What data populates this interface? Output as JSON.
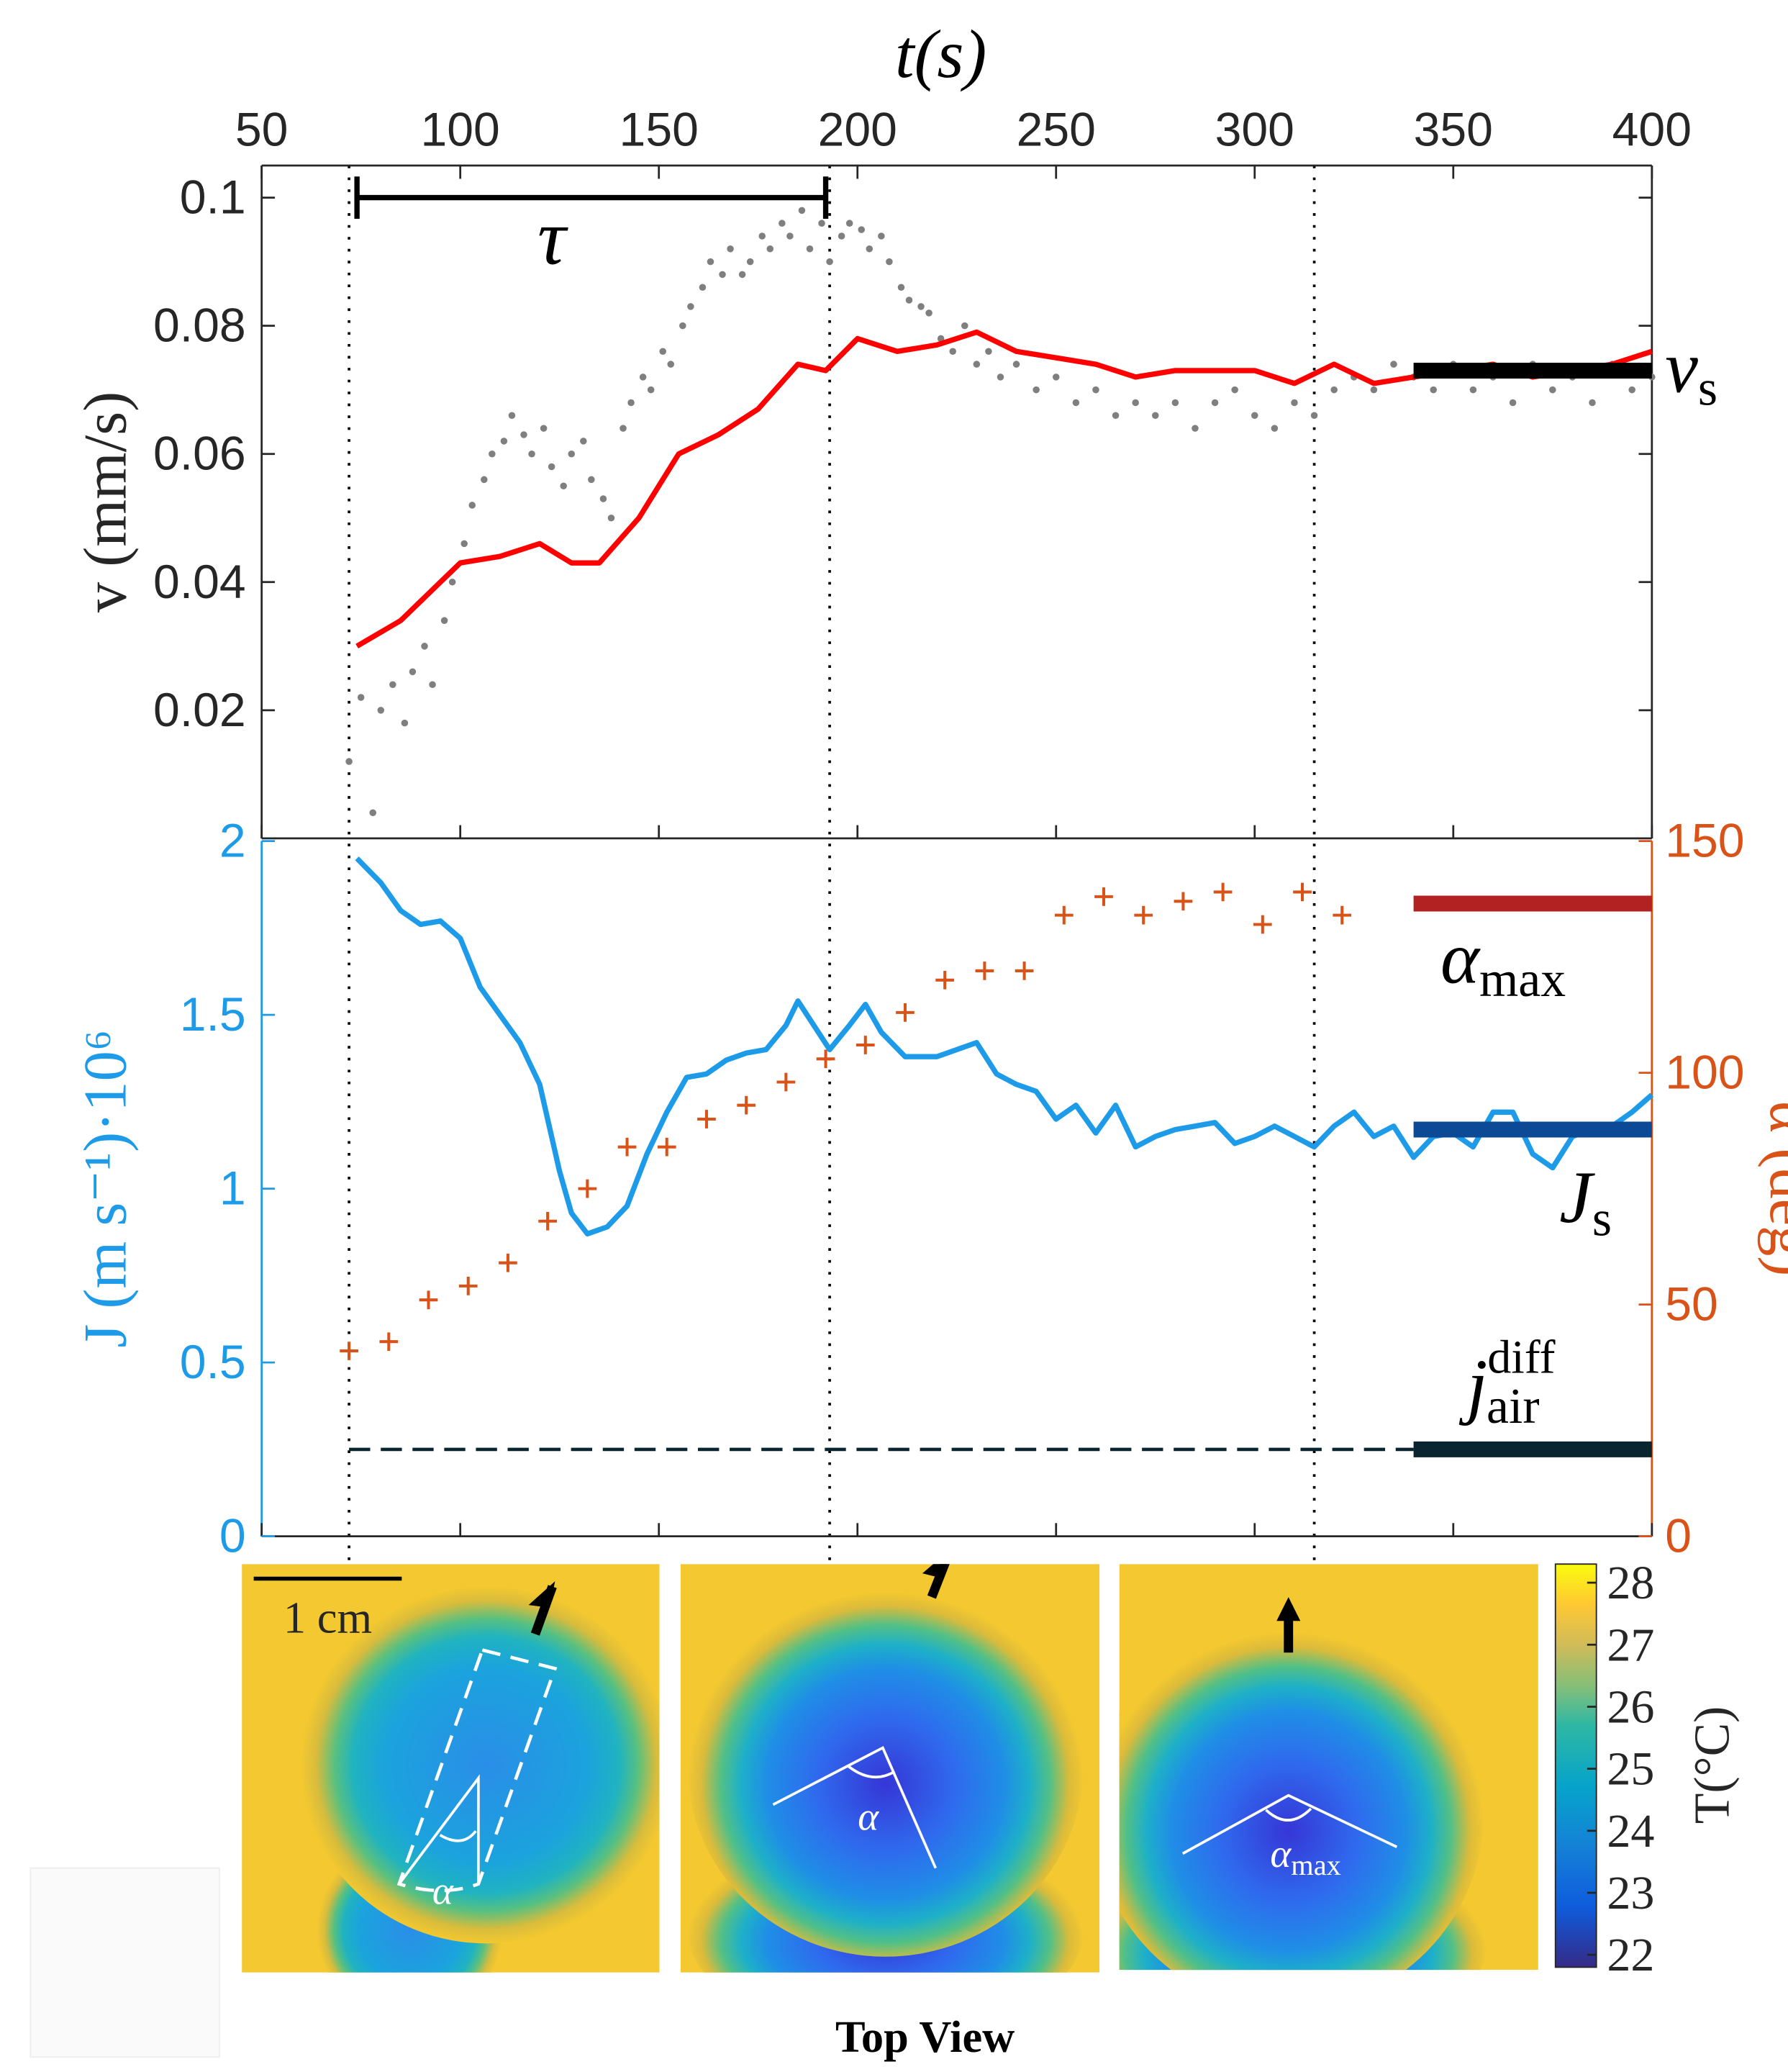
{
  "chart_data": [
    {
      "type": "line",
      "x_label": "t(s)",
      "y_label": "v (mm/s)",
      "xlim": [
        50,
        400
      ],
      "xticks": [
        50,
        100,
        150,
        200,
        250,
        300,
        350,
        400
      ],
      "ylim": [
        0,
        0.105
      ],
      "yticks": [
        0.02,
        0.04,
        0.06,
        0.08,
        0.1
      ],
      "vlines": [
        72,
        193,
        315
      ],
      "bracket": {
        "text": "τ",
        "x": [
          74,
          192
        ],
        "y": 0.1
      },
      "series": [
        {
          "type": "scatter",
          "color": "#7f7f7f",
          "x": [
            72,
            75,
            78,
            80,
            83,
            86,
            88,
            91,
            93,
            96,
            98,
            101,
            103,
            106,
            108,
            111,
            113,
            116,
            118,
            121,
            123,
            126,
            128,
            131,
            133,
            136,
            138,
            141,
            143,
            146,
            148,
            151,
            153,
            156,
            158,
            161,
            163,
            166,
            168,
            171,
            173,
            176,
            178,
            181,
            183,
            186,
            188,
            191,
            193,
            196,
            198,
            201,
            203,
            206,
            208,
            211,
            213,
            216,
            218,
            221,
            224,
            227,
            230,
            233,
            236,
            240,
            245,
            250,
            255,
            260,
            265,
            270,
            275,
            280,
            285,
            290,
            295,
            300,
            305,
            310,
            315,
            320,
            325,
            330,
            335,
            340,
            345,
            350,
            355,
            360,
            365,
            370,
            375,
            380,
            385,
            390,
            395,
            400
          ],
          "values": [
            0.012,
            0.022,
            0.004,
            0.02,
            0.024,
            0.018,
            0.026,
            0.03,
            0.024,
            0.034,
            0.04,
            0.046,
            0.052,
            0.056,
            0.06,
            0.062,
            0.066,
            0.063,
            0.06,
            0.064,
            0.058,
            0.055,
            0.06,
            0.062,
            0.056,
            0.053,
            0.05,
            0.064,
            0.068,
            0.072,
            0.07,
            0.076,
            0.074,
            0.08,
            0.083,
            0.086,
            0.09,
            0.088,
            0.092,
            0.088,
            0.09,
            0.094,
            0.092,
            0.096,
            0.094,
            0.098,
            0.092,
            0.096,
            0.09,
            0.094,
            0.096,
            0.095,
            0.092,
            0.094,
            0.09,
            0.086,
            0.084,
            0.083,
            0.082,
            0.078,
            0.076,
            0.08,
            0.074,
            0.076,
            0.072,
            0.074,
            0.07,
            0.072,
            0.068,
            0.07,
            0.066,
            0.068,
            0.066,
            0.068,
            0.064,
            0.068,
            0.07,
            0.066,
            0.064,
            0.068,
            0.066,
            0.07,
            0.072,
            0.07,
            0.074,
            0.072,
            0.07,
            0.074,
            0.07,
            0.072,
            0.068,
            0.074,
            0.07,
            0.072,
            0.068,
            0.074,
            0.07,
            0.072
          ]
        },
        {
          "type": "line",
          "color": "#ff0000",
          "x": [
            74,
            85,
            95,
            100,
            110,
            120,
            128,
            135,
            145,
            155,
            165,
            175,
            185,
            192,
            200,
            210,
            220,
            230,
            240,
            250,
            260,
            270,
            280,
            290,
            300,
            310,
            320,
            330,
            340,
            350,
            360,
            370,
            380,
            390,
            400
          ],
          "values": [
            0.03,
            0.034,
            0.04,
            0.043,
            0.044,
            0.046,
            0.043,
            0.043,
            0.05,
            0.06,
            0.063,
            0.067,
            0.074,
            0.073,
            0.078,
            0.076,
            0.077,
            0.079,
            0.076,
            0.075,
            0.074,
            0.072,
            0.073,
            0.073,
            0.073,
            0.071,
            0.074,
            0.071,
            0.072,
            0.073,
            0.074,
            0.072,
            0.073,
            0.074,
            0.076
          ]
        }
      ],
      "reference_lines": [
        {
          "label": "v",
          "label_sub": "s",
          "value": 0.073,
          "x": [
            340,
            400
          ],
          "color": "#000000"
        }
      ]
    },
    {
      "type": "line",
      "y_label": "J (m s⁻¹)·10⁶",
      "y2_label": "α (deg)",
      "xlim": [
        50,
        400
      ],
      "xticks": [
        50,
        100,
        150,
        200,
        250,
        300,
        350,
        400
      ],
      "ylim": [
        0,
        2
      ],
      "yticks": [
        0,
        0.5,
        1,
        1.5,
        2
      ],
      "y_color": "#1e9be8",
      "y2lim": [
        0,
        150
      ],
      "y2ticks": [
        0,
        50,
        100,
        150
      ],
      "y2_color": "#d95319",
      "series": [
        {
          "type": "line",
          "color": "#1e9be8",
          "x": [
            74,
            80,
            85,
            90,
            95,
            100,
            105,
            110,
            115,
            120,
            125,
            128,
            132,
            137,
            142,
            147,
            152,
            157,
            162,
            167,
            172,
            177,
            182,
            185,
            189,
            193,
            198,
            202,
            206,
            212,
            220,
            225,
            230,
            235,
            240,
            245,
            250,
            255,
            260,
            265,
            270,
            275,
            280,
            285,
            290,
            295,
            300,
            305,
            310,
            315,
            320,
            325,
            330,
            335,
            340,
            345,
            350,
            355,
            360,
            365,
            370,
            375,
            380,
            385,
            390,
            395,
            400
          ],
          "values": [
            1.95,
            1.88,
            1.8,
            1.76,
            1.77,
            1.72,
            1.58,
            1.5,
            1.42,
            1.3,
            1.05,
            0.93,
            0.87,
            0.89,
            0.95,
            1.1,
            1.22,
            1.32,
            1.33,
            1.37,
            1.39,
            1.4,
            1.47,
            1.54,
            1.47,
            1.4,
            1.47,
            1.53,
            1.45,
            1.38,
            1.38,
            1.4,
            1.42,
            1.33,
            1.3,
            1.28,
            1.2,
            1.24,
            1.16,
            1.24,
            1.12,
            1.15,
            1.17,
            1.18,
            1.19,
            1.13,
            1.15,
            1.18,
            1.15,
            1.12,
            1.18,
            1.22,
            1.15,
            1.18,
            1.09,
            1.15,
            1.16,
            1.12,
            1.22,
            1.22,
            1.1,
            1.06,
            1.15,
            1.17,
            1.18,
            1.22,
            1.27
          ]
        },
        {
          "type": "scatter",
          "marker": "+",
          "axis": "y2",
          "color": "#d95319",
          "x": [
            72,
            82,
            92,
            102,
            112,
            122,
            132,
            142,
            152,
            162,
            172,
            182,
            192,
            202,
            212,
            222,
            232,
            242,
            252,
            262,
            272,
            282,
            292,
            302,
            312,
            322
          ],
          "values": [
            40,
            42,
            51,
            54,
            59,
            68,
            75,
            84,
            84,
            90,
            93,
            98,
            103,
            106,
            113,
            120,
            122,
            122,
            134,
            138,
            134,
            137,
            139,
            132,
            139,
            134
          ]
        }
      ],
      "reference_lines": [
        {
          "label": "α",
          "label_sub": "max",
          "value": 136.5,
          "axis": "y2",
          "x": [
            340,
            400
          ],
          "color": "#b22222"
        },
        {
          "label": "J",
          "label_sub": "s",
          "value": 1.17,
          "x": [
            340,
            400
          ],
          "color": "#0d4a96"
        },
        {
          "label": "j",
          "label_sub": "air",
          "label_sup": "diff",
          "value": 0.25,
          "x": [
            340,
            400
          ],
          "color": "#0a2530",
          "dashed_from": 72
        }
      ]
    }
  ],
  "colorbar": {
    "lim": [
      21.8,
      28.3
    ],
    "ticks": [
      22,
      23,
      24,
      25,
      26,
      27,
      28
    ],
    "label": "T(°C)"
  },
  "images": {
    "scale_bar": "1 cm",
    "angle_labels": [
      {
        "text": "α"
      },
      {
        "text": "α"
      },
      {
        "text": "α",
        "sub": "max"
      }
    ],
    "caption": "Top View"
  }
}
